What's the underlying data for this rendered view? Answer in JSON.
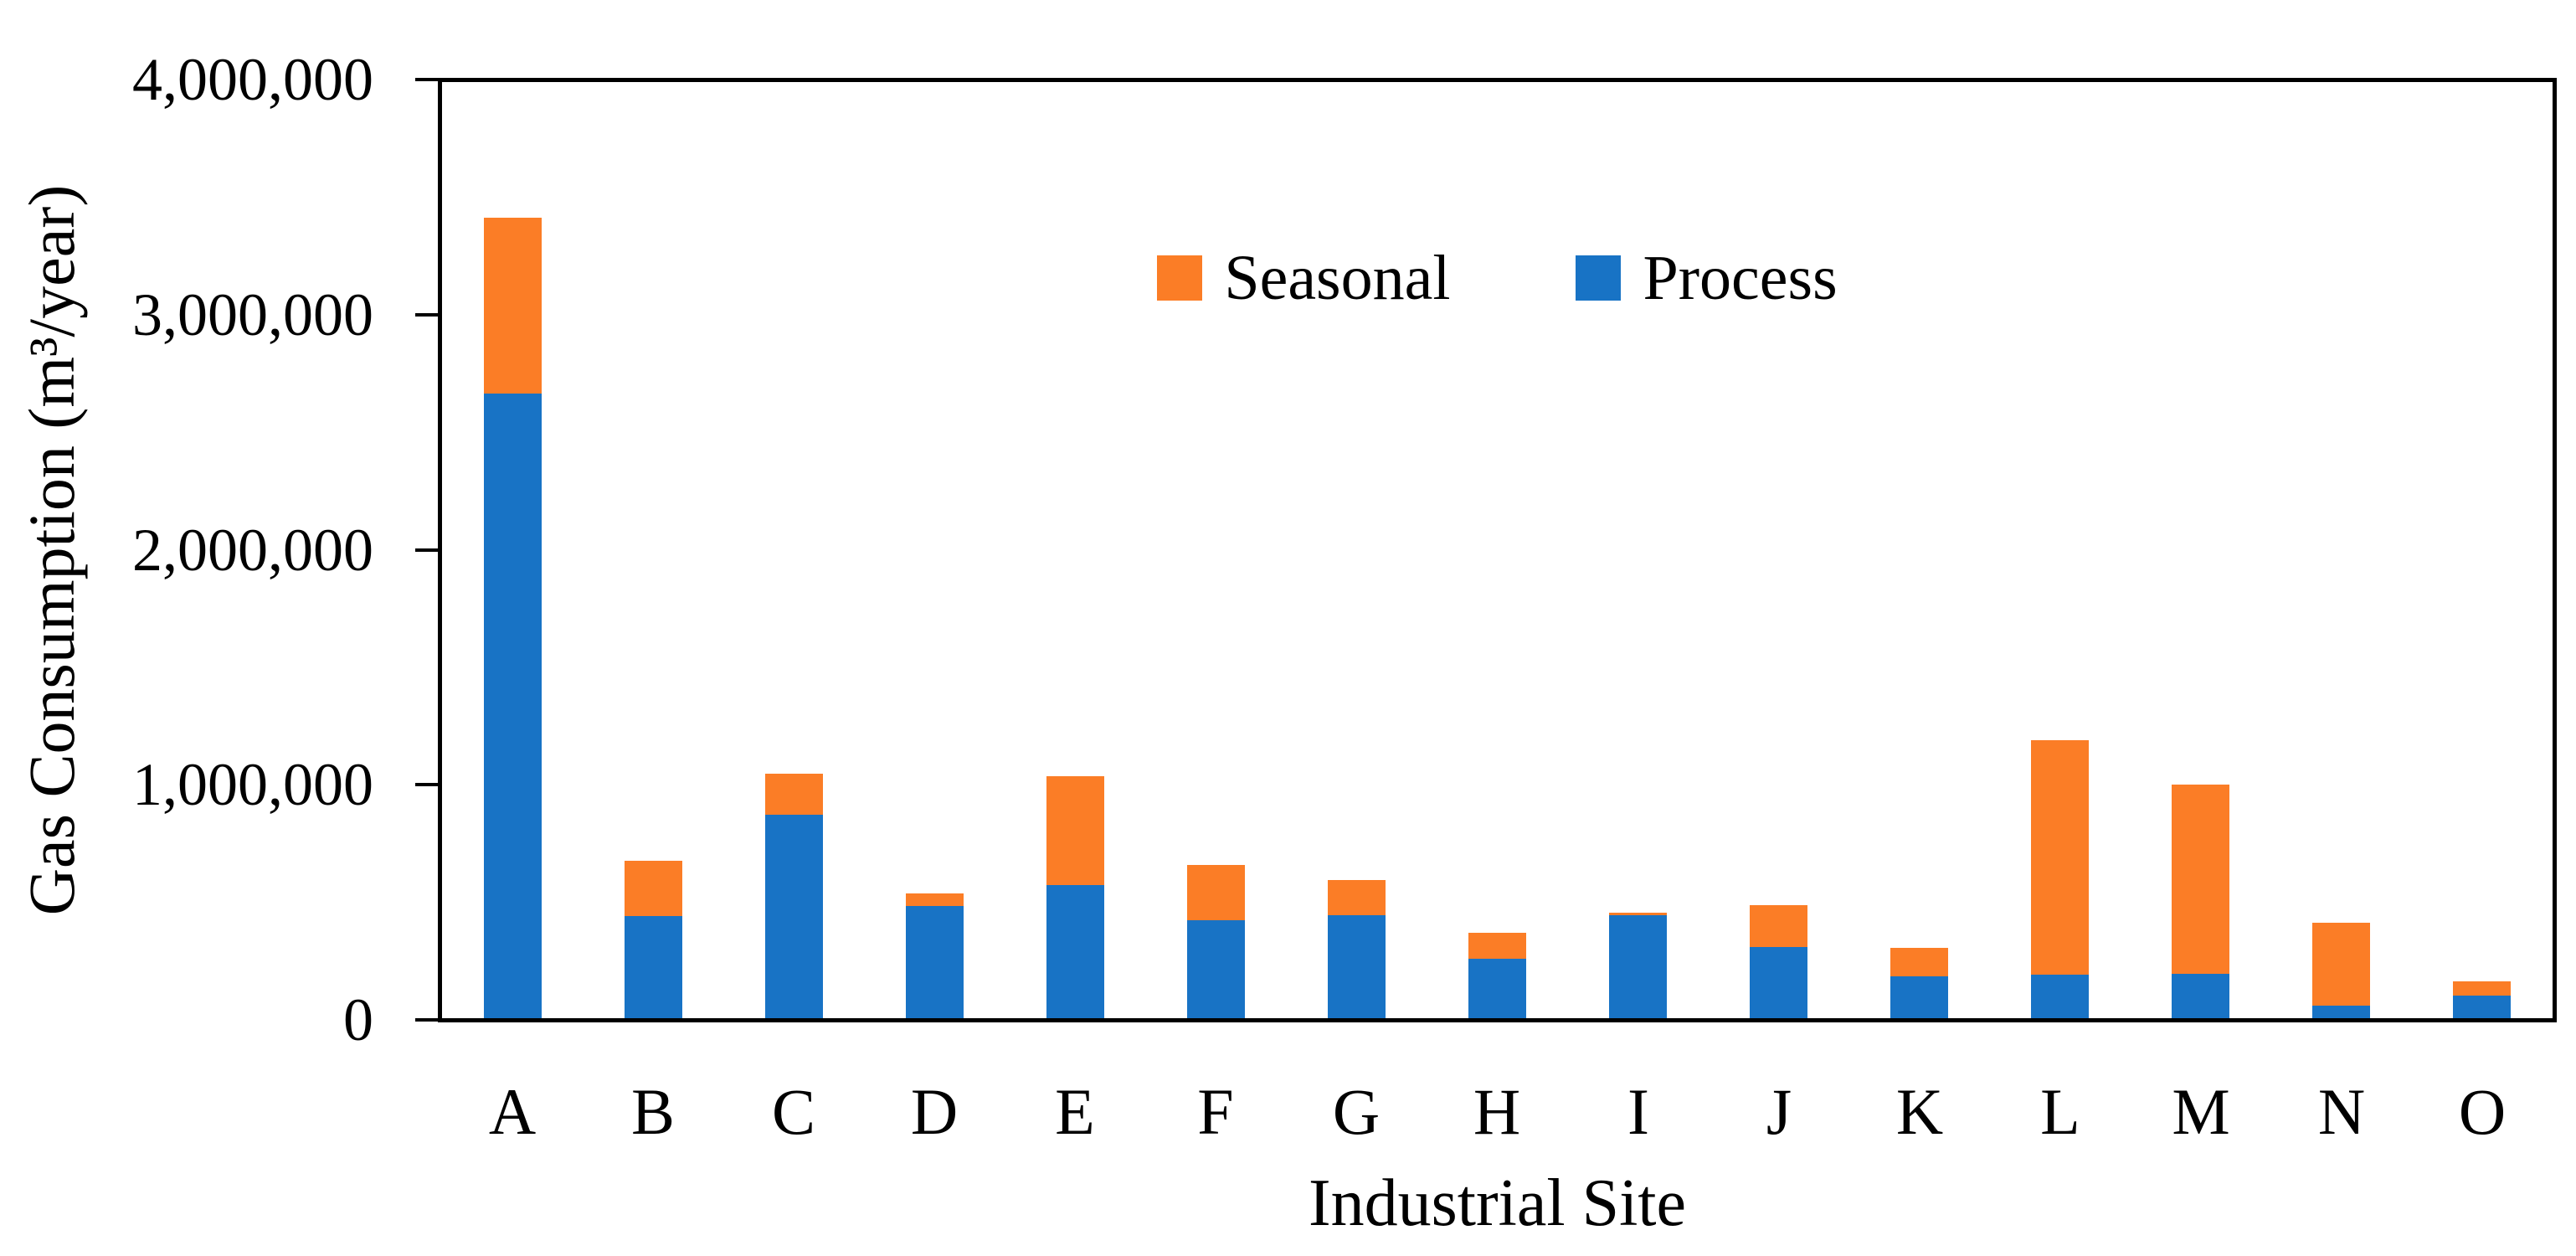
{
  "chart_data": {
    "type": "bar",
    "stacked": true,
    "xlabel": "Industrial Site",
    "ylabel": "Gas Consumption (m³/year)",
    "categories": [
      "A",
      "B",
      "C",
      "D",
      "E",
      "F",
      "G",
      "H",
      "I",
      "J",
      "K",
      "L",
      "M",
      "N",
      "O"
    ],
    "series": [
      {
        "name": "Process",
        "color": "#1873C5",
        "values": [
          2670000,
          435000,
          870000,
          480000,
          570000,
          420000,
          440000,
          255000,
          440000,
          305000,
          180000,
          185000,
          190000,
          55000,
          95000
        ]
      },
      {
        "name": "Seasonal",
        "color": "#FB7D26",
        "values": [
          750000,
          235000,
          175000,
          55000,
          465000,
          235000,
          150000,
          110000,
          10000,
          180000,
          120000,
          1000000,
          810000,
          355000,
          60000
        ]
      }
    ],
    "legend": {
      "position": "top-center-inside",
      "entries": [
        "Seasonal",
        "Process"
      ]
    },
    "y_axis": {
      "min": 0,
      "max": 4000000,
      "tick_interval": 1000000,
      "tick_labels": [
        "0",
        "1,000,000",
        "2,000,000",
        "3,000,000",
        "4,000,000"
      ]
    },
    "grid": false,
    "axis_color": "#000000",
    "background_color": "#FFFFFF"
  }
}
